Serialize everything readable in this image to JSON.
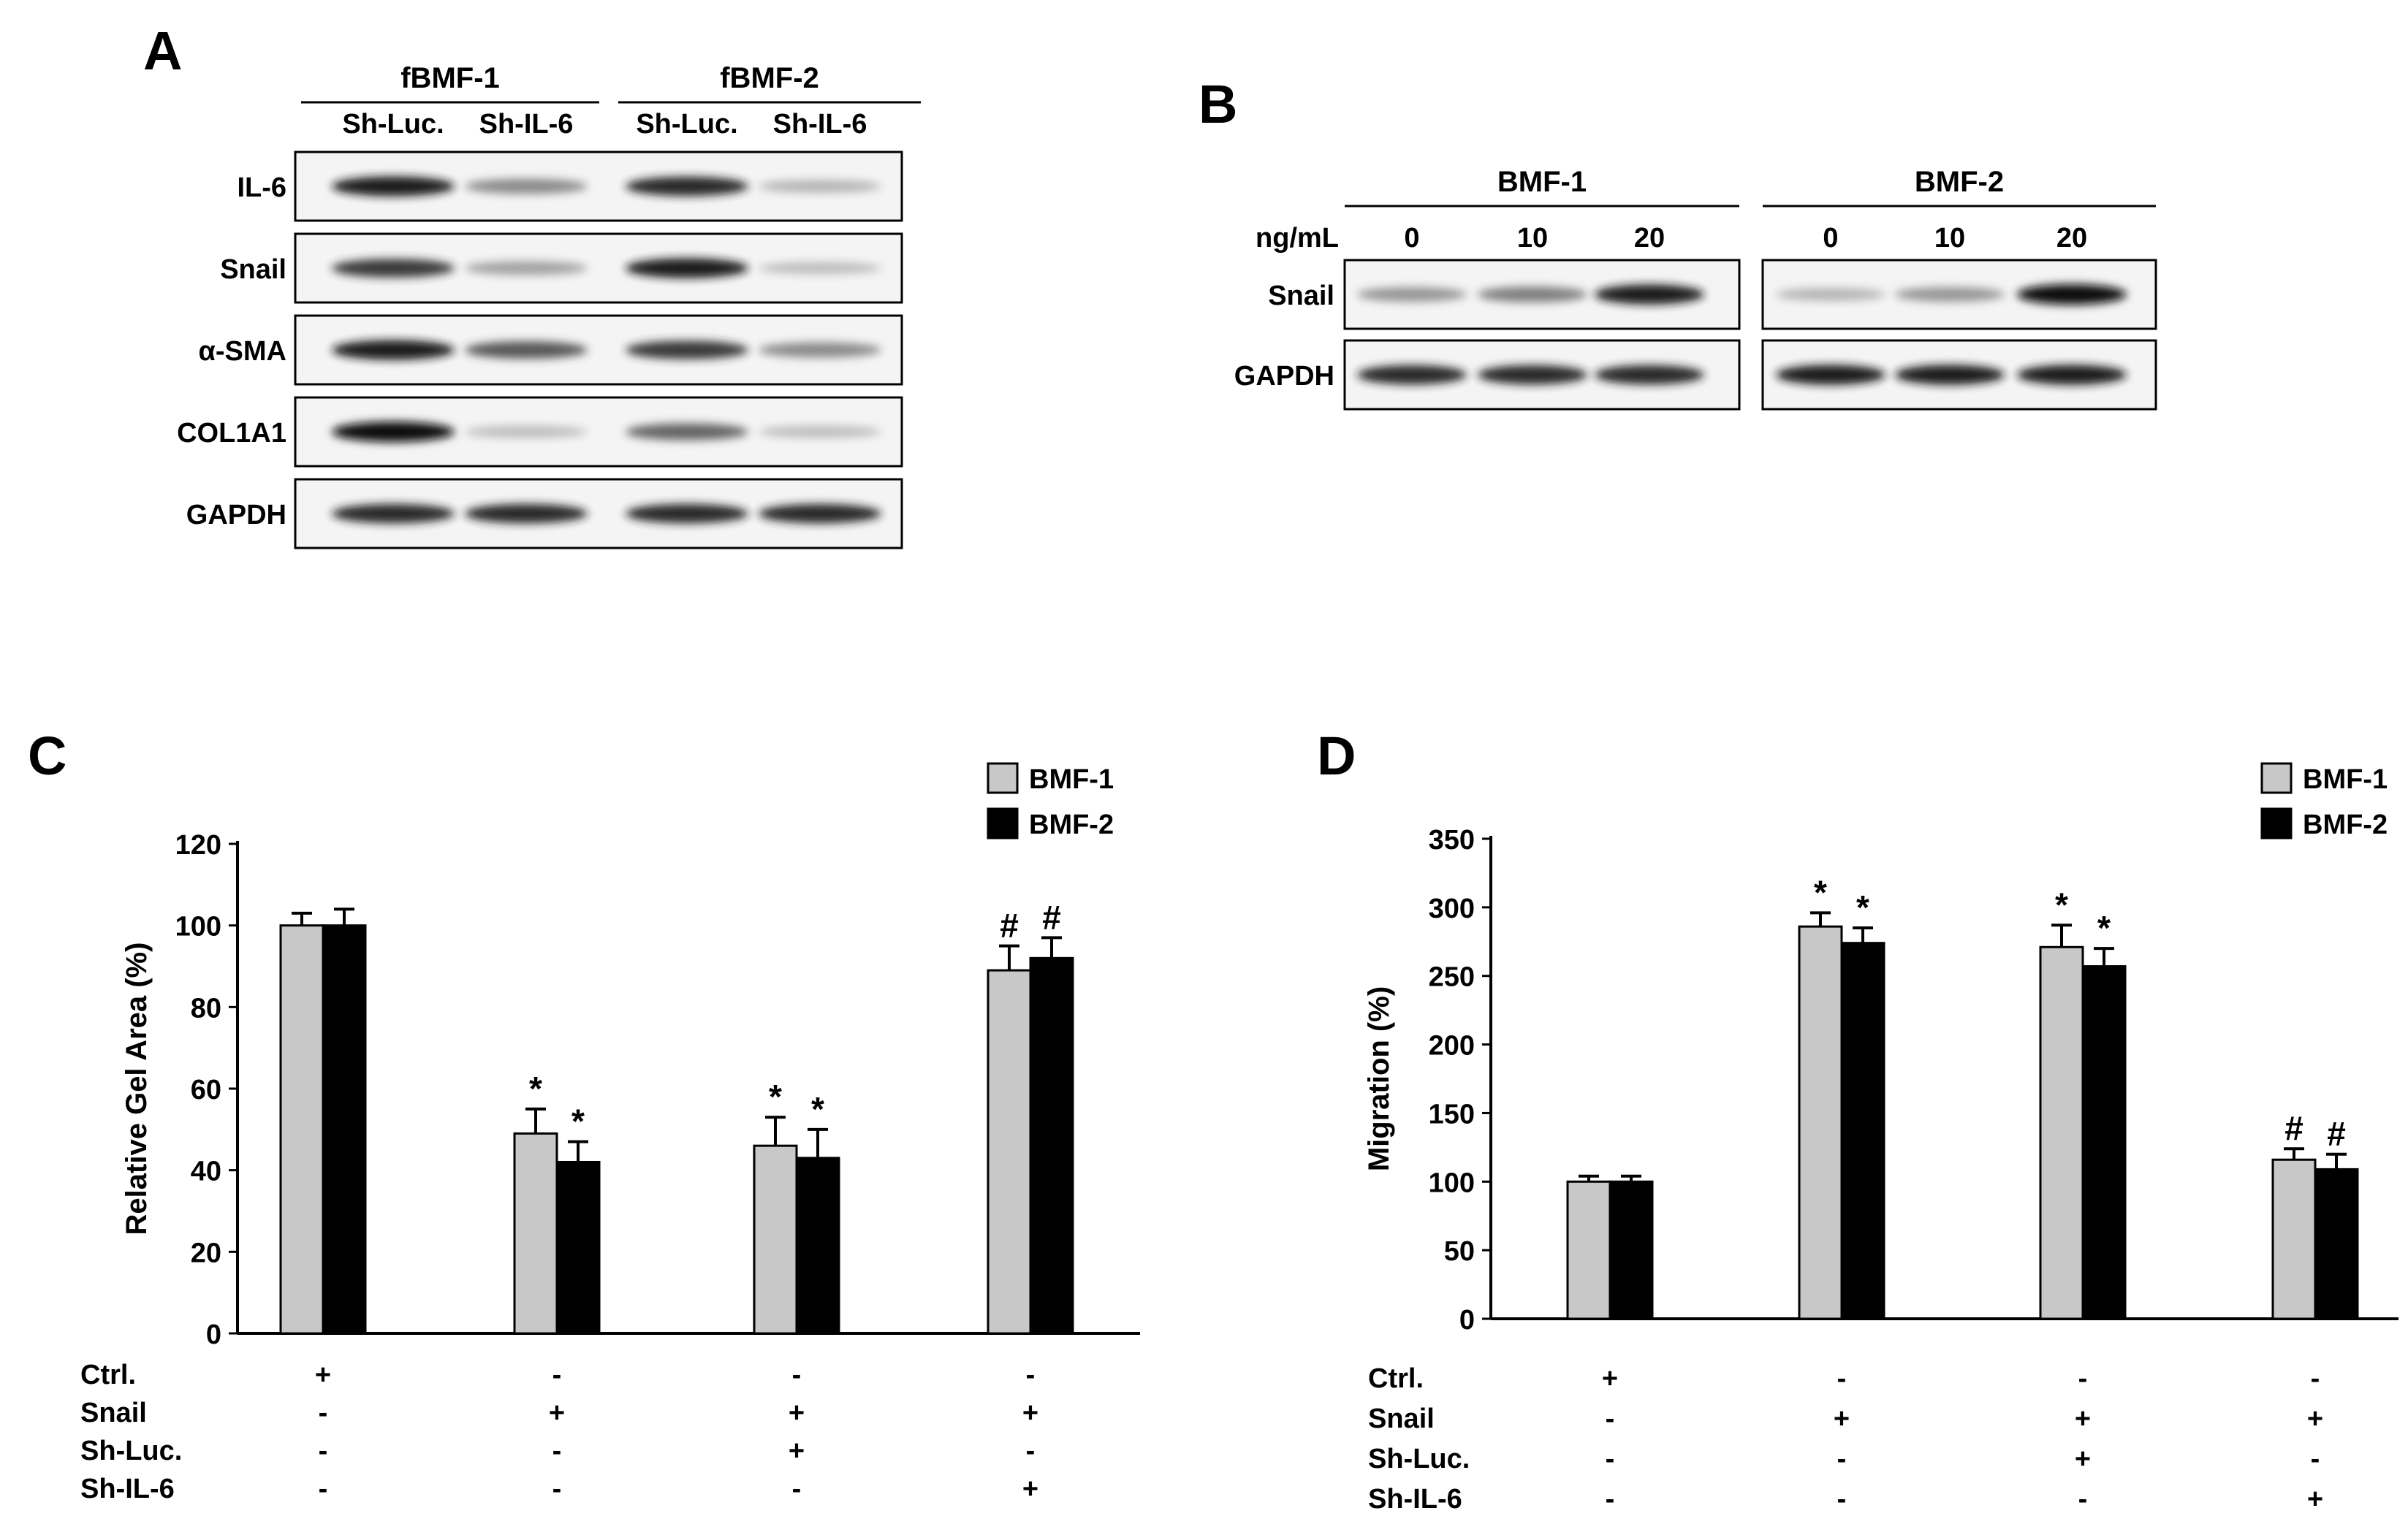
{
  "panel_a": {
    "letter": "A",
    "groups": [
      {
        "name": "fBMF-1",
        "lanes": [
          "Sh-Luc.",
          "Sh-IL-6"
        ]
      },
      {
        "name": "fBMF-2",
        "lanes": [
          "Sh-Luc.",
          "Sh-IL-6"
        ]
      }
    ],
    "blots": [
      {
        "label": "IL-6",
        "intensities": [
          0.95,
          0.55,
          0.9,
          0.35
        ]
      },
      {
        "label": "Snail",
        "intensities": [
          0.85,
          0.45,
          0.95,
          0.3
        ]
      },
      {
        "label": "α-SMA",
        "intensities": [
          0.95,
          0.75,
          0.85,
          0.55
        ]
      },
      {
        "label": "COL1A1",
        "intensities": [
          1.0,
          0.3,
          0.7,
          0.3
        ]
      },
      {
        "label": "GAPDH",
        "intensities": [
          0.9,
          0.9,
          0.9,
          0.9
        ]
      }
    ]
  },
  "panel_b": {
    "letter": "B",
    "unit_label": "ng/mL",
    "groups": [
      {
        "name": "BMF-1",
        "doses": [
          "0",
          "10",
          "20"
        ]
      },
      {
        "name": "BMF-2",
        "doses": [
          "0",
          "10",
          "20"
        ]
      }
    ],
    "blots": [
      {
        "label": "Snail",
        "intensities": [
          [
            0.5,
            0.6,
            0.95
          ],
          [
            0.35,
            0.5,
            1.0
          ]
        ]
      },
      {
        "label": "GAPDH",
        "intensities": [
          [
            0.9,
            0.9,
            0.9
          ],
          [
            0.95,
            0.95,
            0.95
          ]
        ]
      }
    ]
  },
  "chart_data": [
    {
      "panel": "C",
      "type": "bar",
      "ylabel": "Relative Gel Area (%)",
      "ylim": [
        0,
        120
      ],
      "yticks": [
        0,
        20,
        40,
        60,
        80,
        100,
        120
      ],
      "legend": [
        "BMF-1",
        "BMF-2"
      ],
      "legend_position": "top-right",
      "series": [
        {
          "name": "BMF-1",
          "color": "#c8c8c8",
          "values": [
            100,
            49,
            46,
            89
          ],
          "errors": [
            3,
            6,
            7,
            6
          ],
          "marks": [
            "",
            "*",
            "*",
            "#"
          ]
        },
        {
          "name": "BMF-2",
          "color": "#000000",
          "values": [
            100,
            42,
            43,
            92
          ],
          "errors": [
            4,
            5,
            7,
            5
          ],
          "marks": [
            "",
            "*",
            "*",
            "#"
          ]
        }
      ],
      "conditions": [
        {
          "label": "Ctrl.",
          "signs": [
            "+",
            "-",
            "-",
            "-"
          ]
        },
        {
          "label": "Snail",
          "signs": [
            "-",
            "+",
            "+",
            "+"
          ]
        },
        {
          "label": "Sh-Luc.",
          "signs": [
            "-",
            "-",
            "+",
            "-"
          ]
        },
        {
          "label": "Sh-IL-6",
          "signs": [
            "-",
            "-",
            "-",
            "+"
          ]
        }
      ]
    },
    {
      "panel": "D",
      "type": "bar",
      "ylabel": "Migration (%)",
      "ylim": [
        0,
        350
      ],
      "yticks": [
        0,
        50,
        100,
        150,
        200,
        250,
        300,
        350
      ],
      "legend": [
        "BMF-1",
        "BMF-2"
      ],
      "legend_position": "top-right",
      "series": [
        {
          "name": "BMF-1",
          "color": "#c8c8c8",
          "values": [
            100,
            286,
            271,
            116
          ],
          "errors": [
            4,
            10,
            16,
            8
          ],
          "marks": [
            "",
            "*",
            "*",
            "#"
          ]
        },
        {
          "name": "BMF-2",
          "color": "#000000",
          "values": [
            100,
            274,
            257,
            109
          ],
          "errors": [
            4,
            11,
            13,
            11
          ],
          "marks": [
            "",
            "*",
            "*",
            "#"
          ]
        }
      ],
      "conditions": [
        {
          "label": "Ctrl.",
          "signs": [
            "+",
            "-",
            "-",
            "-"
          ]
        },
        {
          "label": "Snail",
          "signs": [
            "-",
            "+",
            "+",
            "+"
          ]
        },
        {
          "label": "Sh-Luc.",
          "signs": [
            "-",
            "-",
            "+",
            "-"
          ]
        },
        {
          "label": "Sh-IL-6",
          "signs": [
            "-",
            "-",
            "-",
            "+"
          ]
        }
      ]
    }
  ]
}
